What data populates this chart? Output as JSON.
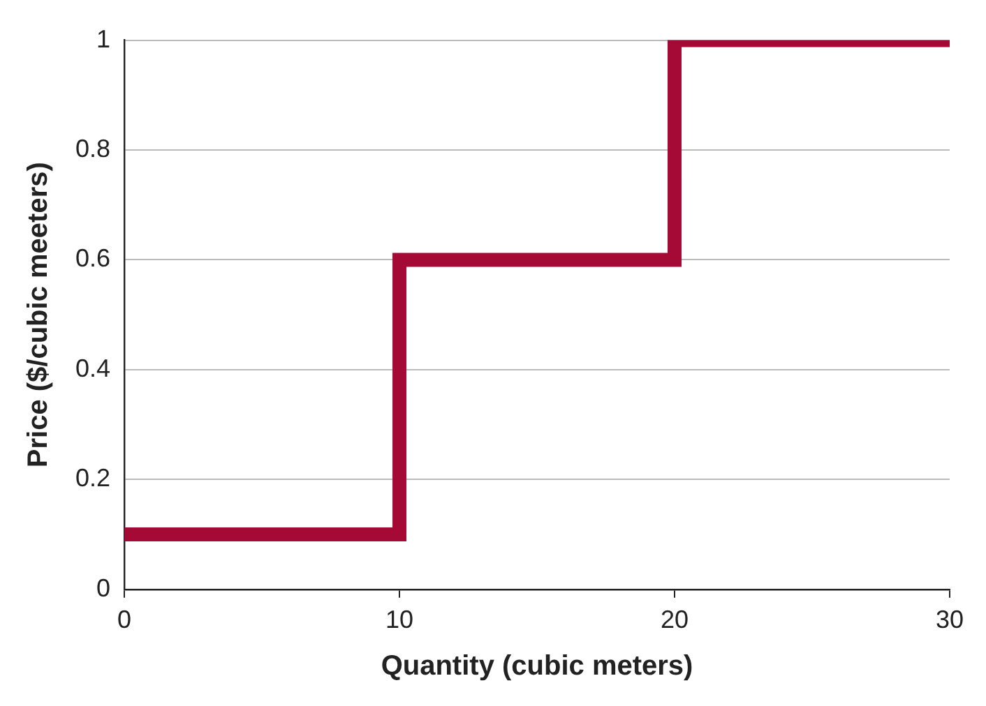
{
  "chart_data": {
    "type": "step",
    "xlabel": "Quantity (cubic meters)",
    "ylabel": "Price ($/cubic meeters)",
    "x": [
      0,
      10,
      20,
      30
    ],
    "series": [
      {
        "color": "#a50a36",
        "values": [
          0.1,
          0.6,
          1,
          1
        ]
      }
    ],
    "xlim": [
      0,
      30
    ],
    "xticks": [
      0,
      10,
      20,
      30
    ],
    "ylim": [
      0,
      1
    ],
    "yticks": [
      0,
      0.2,
      0.4,
      0.6,
      0.8,
      1
    ],
    "grid": "y",
    "legend": false
  }
}
